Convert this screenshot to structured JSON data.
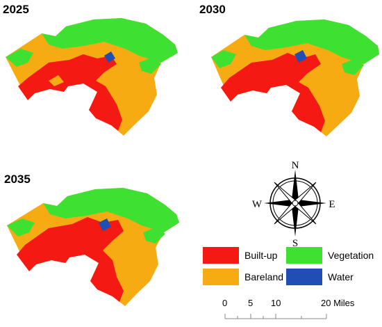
{
  "panels": [
    {
      "year": "2025"
    },
    {
      "year": "2030"
    },
    {
      "year": "2035"
    }
  ],
  "legend": {
    "items": [
      {
        "label": "Built-up",
        "color": "#f41a13"
      },
      {
        "label": "Vegetation",
        "color": "#3ee032"
      },
      {
        "label": "Bareland",
        "color": "#f7ab12"
      },
      {
        "label": "Water",
        "color": "#1f4fb3"
      }
    ]
  },
  "compass": {
    "north": "N",
    "south": "S",
    "east": "E",
    "west": "W"
  },
  "scalebar": {
    "ticks": [
      "0",
      "5",
      "10",
      "20 Miles"
    ]
  }
}
